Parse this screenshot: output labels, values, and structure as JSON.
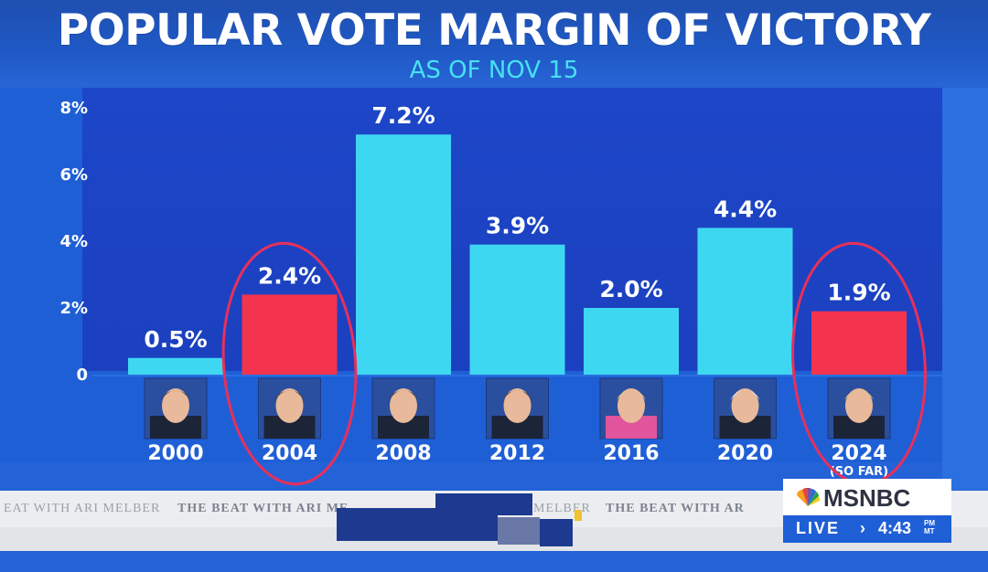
{
  "header": {
    "title": "POPULAR VOTE MARGIN OF VICTORY",
    "subtitle": "AS OF NOV 15"
  },
  "chart_data": {
    "type": "bar",
    "title": "POPULAR VOTE MARGIN OF VICTORY",
    "subtitle": "AS OF NOV 15",
    "categories": [
      "2000",
      "2004",
      "2008",
      "2012",
      "2016",
      "2020",
      "2024"
    ],
    "category_notes": [
      "",
      "",
      "",
      "",
      "",
      "",
      "(SO FAR)"
    ],
    "values": [
      0.5,
      2.4,
      7.2,
      3.9,
      2.0,
      4.4,
      1.9
    ],
    "data_labels": [
      "0.5%",
      "2.4%",
      "7.2%",
      "3.9%",
      "2.0%",
      "4.4%",
      "1.9%"
    ],
    "party": [
      "D",
      "R",
      "D",
      "D",
      "D",
      "D",
      "R"
    ],
    "yticks": [
      0,
      2,
      4,
      6,
      8
    ],
    "ytick_labels": [
      "0",
      "2%",
      "4%",
      "6%",
      "8%"
    ],
    "ylim": [
      0,
      8
    ],
    "colors": {
      "D": "#3ed7f2",
      "R": "#f4334f"
    },
    "highlighted": [
      "2004",
      "2024"
    ],
    "xlabel": "",
    "ylabel": "",
    "grid": false
  },
  "ticker": {
    "items": [
      "EAT WITH ARI MELBER",
      "THE BEAT WITH ARI ME",
      "MELBER",
      "THE BEAT WITH AR"
    ]
  },
  "network": {
    "logo": "MSNBC",
    "live": "LIVE",
    "arrow": "›",
    "time": "4:43",
    "ampm": "PM",
    "tz": "MT"
  }
}
